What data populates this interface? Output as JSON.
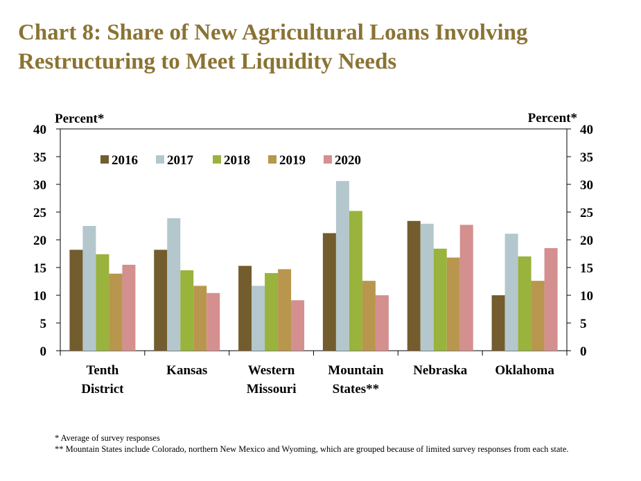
{
  "title_lines": [
    "Chart 8: Share of New Agricultural Loans Involving",
    "Restructuring to Meet Liquidity Needs"
  ],
  "footnotes": [
    "* Average of survey responses",
    "** Mountain States include Colorado, northern New Mexico and Wyoming, which are grouped because of limited survey responses from each state."
  ],
  "chart_data": {
    "type": "bar",
    "title": "Chart 8: Share of New Agricultural Loans Involving Restructuring to Meet Liquidity Needs",
    "ylabel_left": "Percent*",
    "ylabel_right": "Percent*",
    "ylim": [
      0,
      40
    ],
    "yticks": [
      0,
      5,
      10,
      15,
      20,
      25,
      30,
      35,
      40
    ],
    "grid": false,
    "legend_position": "top-left",
    "categories": [
      [
        "Tenth",
        "District"
      ],
      [
        "Kansas"
      ],
      [
        "Western",
        "Missouri"
      ],
      [
        "Mountain",
        "States**"
      ],
      [
        "Nebraska"
      ],
      [
        "Oklahoma"
      ]
    ],
    "series": [
      {
        "name": "2016",
        "color": "#735c2d",
        "values": [
          18.2,
          18.2,
          15.3,
          21.2,
          23.4,
          10.0
        ]
      },
      {
        "name": "2017",
        "color": "#b3c7cc",
        "values": [
          22.5,
          23.9,
          11.7,
          30.6,
          22.9,
          21.1
        ]
      },
      {
        "name": "2018",
        "color": "#99b33d",
        "values": [
          17.4,
          14.5,
          14.0,
          25.2,
          18.4,
          17.0
        ]
      },
      {
        "name": "2019",
        "color": "#b8964d",
        "values": [
          13.9,
          11.7,
          14.7,
          12.6,
          16.8,
          12.6
        ]
      },
      {
        "name": "2020",
        "color": "#d48f8f",
        "values": [
          15.5,
          10.4,
          9.1,
          10.0,
          22.7,
          18.5
        ]
      }
    ]
  }
}
